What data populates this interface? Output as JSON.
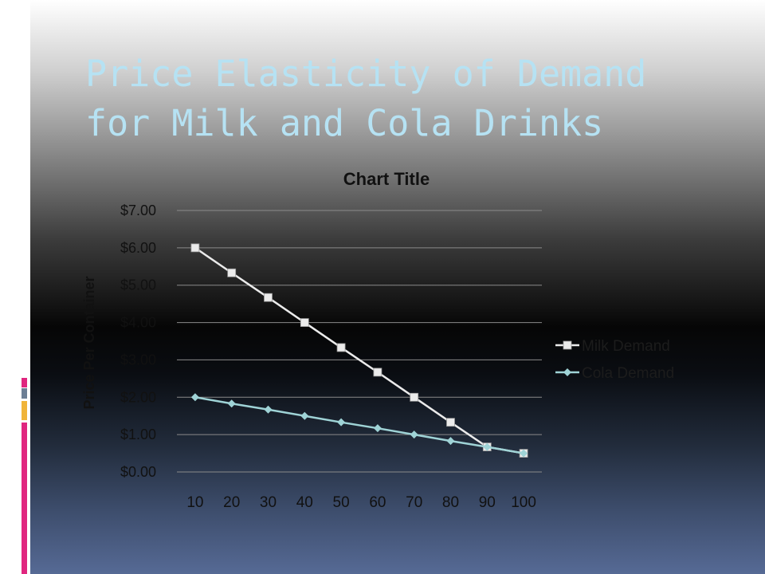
{
  "slide": {
    "title_lines": [
      "Price Elasticity of Demand",
      "for Milk and Cola Drinks"
    ],
    "accent_colors": [
      "#e0267f",
      "#ffffff",
      "#6d7f95",
      "#ffffff",
      "#f0b43a",
      "#ffffff",
      "#e0267f"
    ]
  },
  "chart_data": {
    "type": "line",
    "title": "Chart Title",
    "xlabel": "",
    "ylabel": "Price Per Container",
    "x": [
      10,
      20,
      30,
      40,
      50,
      60,
      70,
      80,
      90,
      100
    ],
    "ylim": [
      0,
      7
    ],
    "y_tick_labels": [
      "$0.00",
      "$1.00",
      "$2.00",
      "$3.00",
      "$4.00",
      "$5.00",
      "$6.00",
      "$7.00"
    ],
    "grid": true,
    "legend_position": "right",
    "series": [
      {
        "name": "Milk Demand",
        "values": [
          6.0,
          5.33,
          4.67,
          4.0,
          3.33,
          2.67,
          2.0,
          1.33,
          0.67,
          0.5
        ],
        "color": "#ebebeb",
        "marker": "square"
      },
      {
        "name": "Cola Demand",
        "values": [
          2.0,
          1.83,
          1.67,
          1.5,
          1.33,
          1.17,
          1.0,
          0.83,
          0.67,
          0.5
        ],
        "color": "#9fd3d6",
        "marker": "diamond"
      }
    ]
  }
}
